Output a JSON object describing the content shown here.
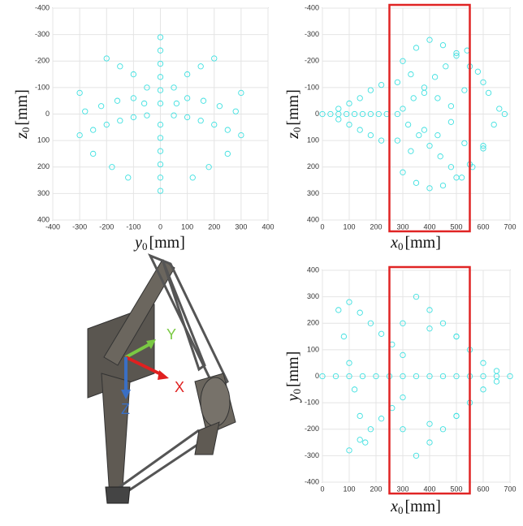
{
  "chart_data": [
    {
      "type": "scatter",
      "marker_color": "#3fe0e0",
      "grid": true,
      "y_reversed": true,
      "xlabel": {
        "symbol": "y",
        "subscript": "0",
        "unit": "[mm]"
      },
      "ylabel": {
        "symbol": "z",
        "subscript": "0",
        "unit": "[mm]"
      },
      "xlim": [
        -400,
        400
      ],
      "xticks": [
        -400,
        -300,
        -200,
        -100,
        0,
        100,
        200,
        300,
        400
      ],
      "ylim": [
        -400,
        400
      ],
      "yticks": [
        -400,
        -300,
        -200,
        -100,
        0,
        100,
        200,
        300,
        400
      ],
      "x": [
        0,
        0,
        0,
        0,
        0,
        0,
        0,
        0,
        0,
        0,
        0,
        0,
        -300,
        -250,
        -200,
        -150,
        -100,
        -50,
        50,
        100,
        150,
        200,
        250,
        300,
        -280,
        -220,
        -160,
        -100,
        -60,
        60,
        100,
        160,
        220,
        280,
        -200,
        -150,
        -100,
        100,
        150,
        200,
        -250,
        -180,
        -120,
        120,
        180,
        250,
        -300,
        -50,
        50,
        300
      ],
      "y": [
        -290,
        -240,
        -190,
        -140,
        -90,
        -40,
        40,
        90,
        140,
        190,
        240,
        290,
        80,
        60,
        40,
        25,
        12,
        5,
        5,
        12,
        25,
        40,
        60,
        80,
        -10,
        -30,
        -50,
        -60,
        -40,
        -40,
        -60,
        -50,
        -30,
        -10,
        -210,
        -180,
        -150,
        -150,
        -180,
        -210,
        150,
        200,
        240,
        240,
        200,
        150,
        -80,
        -100,
        -100,
        -80
      ]
    },
    {
      "type": "scatter",
      "marker_color": "#3fe0e0",
      "grid": true,
      "y_reversed": true,
      "highlight": {
        "x": [
          250,
          550
        ],
        "color": "#e02424"
      },
      "xlabel": {
        "symbol": "x",
        "subscript": "0",
        "unit": "[mm]"
      },
      "ylabel": {
        "symbol": "z",
        "subscript": "0",
        "unit": "[mm]"
      },
      "xlim": [
        0,
        700
      ],
      "xticks": [
        0,
        100,
        200,
        300,
        400,
        500,
        600,
        700
      ],
      "ylim": [
        -400,
        400
      ],
      "yticks": [
        -400,
        -300,
        -200,
        -100,
        0,
        100,
        200,
        300,
        400
      ],
      "x": [
        0,
        30,
        60,
        90,
        120,
        150,
        180,
        210,
        240,
        60,
        100,
        140,
        180,
        220,
        60,
        100,
        140,
        180,
        220,
        280,
        300,
        320,
        340,
        360,
        380,
        400,
        420,
        440,
        460,
        480,
        500,
        520,
        540,
        560,
        580,
        600,
        620,
        640,
        660,
        680,
        300,
        350,
        400,
        450,
        500,
        550,
        600,
        300,
        350,
        400,
        450,
        500,
        550,
        600,
        280,
        330,
        380,
        430,
        480,
        530,
        280,
        330,
        380,
        430,
        480,
        530
      ],
      "y": [
        0,
        0,
        0,
        0,
        0,
        0,
        0,
        0,
        0,
        -20,
        -40,
        -60,
        -90,
        -110,
        20,
        40,
        60,
        80,
        100,
        0,
        -20,
        40,
        -60,
        80,
        -100,
        120,
        -140,
        160,
        -180,
        200,
        -220,
        240,
        -240,
        200,
        -160,
        120,
        -80,
        40,
        -20,
        0,
        -200,
        -250,
        -280,
        -260,
        -230,
        -180,
        -120,
        220,
        260,
        280,
        270,
        240,
        190,
        130,
        -120,
        -150,
        -80,
        -60,
        -30,
        -90,
        100,
        140,
        60,
        80,
        30,
        110
      ]
    },
    {
      "type": "scatter",
      "marker_color": "#3fe0e0",
      "grid": true,
      "y_reversed": false,
      "highlight": {
        "x": [
          250,
          550
        ],
        "color": "#e02424"
      },
      "xlabel": {
        "symbol": "x",
        "subscript": "0",
        "unit": "[mm]"
      },
      "ylabel": {
        "symbol": "y",
        "subscript": "0",
        "unit": "[mm]"
      },
      "xlim": [
        0,
        700
      ],
      "xticks": [
        0,
        100,
        200,
        300,
        400,
        500,
        600,
        700
      ],
      "ylim": [
        -400,
        400
      ],
      "yticks": [
        -400,
        -300,
        -200,
        -100,
        0,
        100,
        200,
        300,
        400
      ],
      "x": [
        0,
        50,
        100,
        150,
        200,
        250,
        300,
        350,
        400,
        450,
        500,
        550,
        600,
        650,
        700,
        60,
        80,
        100,
        120,
        140,
        160,
        100,
        140,
        180,
        220,
        260,
        300,
        100,
        140,
        180,
        220,
        260,
        300,
        350,
        400,
        450,
        500,
        550,
        600,
        650,
        350,
        400,
        450,
        500,
        550,
        600,
        650,
        300,
        400,
        500,
        300,
        400,
        500
      ],
      "y": [
        0,
        0,
        0,
        0,
        0,
        0,
        0,
        0,
        0,
        0,
        0,
        0,
        0,
        0,
        0,
        250,
        150,
        50,
        -50,
        -150,
        -250,
        280,
        240,
        200,
        160,
        120,
        80,
        -280,
        -240,
        -200,
        -160,
        -120,
        -80,
        300,
        250,
        200,
        150,
        100,
        50,
        20,
        -300,
        -250,
        -200,
        -150,
        -100,
        -50,
        -20,
        200,
        180,
        150,
        -200,
        -180,
        -150
      ]
    }
  ],
  "robot": {
    "axes": {
      "x": "X",
      "y": "Y",
      "z": "Z"
    }
  }
}
